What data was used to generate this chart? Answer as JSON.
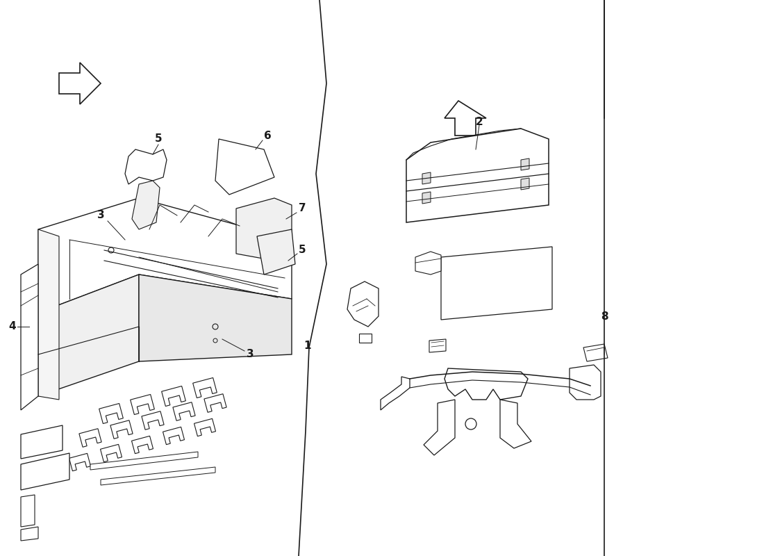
{
  "background_color": "#ffffff",
  "line_color": "#1a1a1a",
  "fig_width": 11.0,
  "fig_height": 8.0,
  "dpi": 100,
  "lw_main": 1.0,
  "lw_thin": 0.6,
  "lw_thick": 1.4,
  "fc_part": "#ffffff",
  "fc_shadow": "#e8e8e8"
}
